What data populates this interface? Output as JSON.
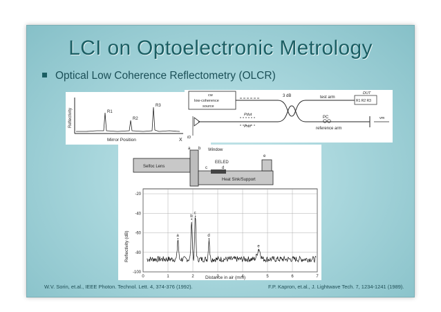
{
  "slide": {
    "title": "LCI on Optoelectronic Metrology",
    "bullet": "Optical Low Coherence Reflectometry (OLCR)",
    "citation_left": "W.V. Sorin, et.al., IEEE Photon. Technol. Lett. 4, 374-376 (1992).",
    "citation_right": "F.P. Kapron, et.al., J. Lightwave Tech. 7, 1234-1241 (1989)."
  },
  "reflectivity_plot": {
    "ylabel": "Reflectivity",
    "xlabel": "Mirror Position",
    "axis_x": "X",
    "peaks": [
      "R1",
      "R2",
      "R3"
    ]
  },
  "setup_diagram": {
    "source_label_1": "cw",
    "source_label_2": "low-coherence",
    "source_label_3": "source",
    "coupler": "3 dB",
    "test_arm": "test arm",
    "dut": "DUT",
    "dut_reflections": "R1 R2 R3",
    "pc": "PC",
    "reference_arm": "reference arm",
    "p_dut": "Pdut",
    "p_ref": "Pref",
    "detector": "iD",
    "velocity": "vm"
  },
  "device_schematic": {
    "selfoc": "Selfoc Lens",
    "window": "Window",
    "eeled": "EELED",
    "heatsink": "Heat Sink/Support",
    "markers": [
      "a",
      "b",
      "c",
      "d",
      "e"
    ]
  },
  "chart_data": {
    "type": "line",
    "xlabel": "Distance in air  (mm)",
    "ylabel": "Reflectivity (dB)",
    "xlim": [
      0,
      7
    ],
    "ylim": [
      -100,
      -15
    ],
    "xticks": [
      "0",
      "1",
      "2",
      "3",
      "4",
      "5",
      "6",
      "7"
    ],
    "yticks": [
      "-20",
      "-40",
      "-60",
      "-80",
      "-100"
    ],
    "noise_floor": -87,
    "peaks": [
      {
        "label": "a",
        "x": 1.4,
        "y": -66
      },
      {
        "label": "b",
        "x": 1.95,
        "y": -46
      },
      {
        "label": "c",
        "x": 2.1,
        "y": -43
      },
      {
        "label": "d",
        "x": 2.65,
        "y": -66
      },
      {
        "label": "e",
        "x": 4.65,
        "y": -77
      }
    ]
  }
}
